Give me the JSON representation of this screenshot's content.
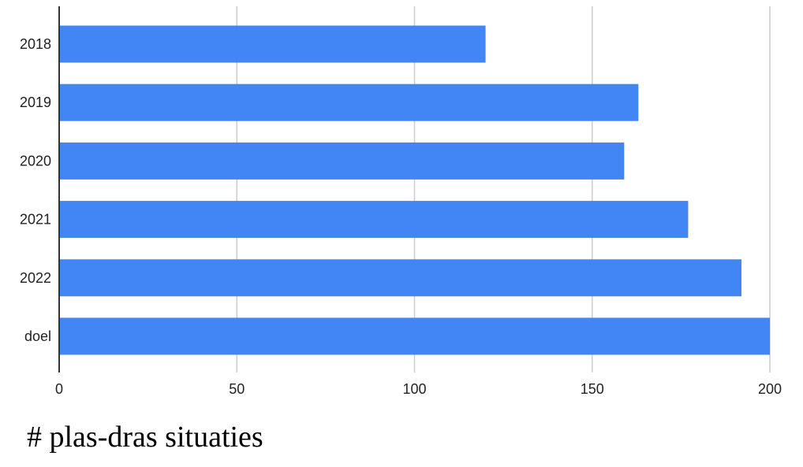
{
  "chart_data": {
    "type": "bar",
    "orientation": "horizontal",
    "categories": [
      "2018",
      "2019",
      "2020",
      "2021",
      "2022",
      "doel"
    ],
    "values": [
      120,
      163,
      159,
      177,
      192,
      200
    ],
    "xlim": [
      0,
      200
    ],
    "xticks": [
      "0",
      "50",
      "100",
      "150",
      "200"
    ],
    "xtick_values": [
      0,
      50,
      100,
      150,
      200
    ],
    "title": "",
    "xlabel": "# plas-dras situaties",
    "ylabel": "",
    "grid": "vertical",
    "bar_color": "#4285F4",
    "grid_color": "#cccccc",
    "axis_color": "#333333"
  }
}
